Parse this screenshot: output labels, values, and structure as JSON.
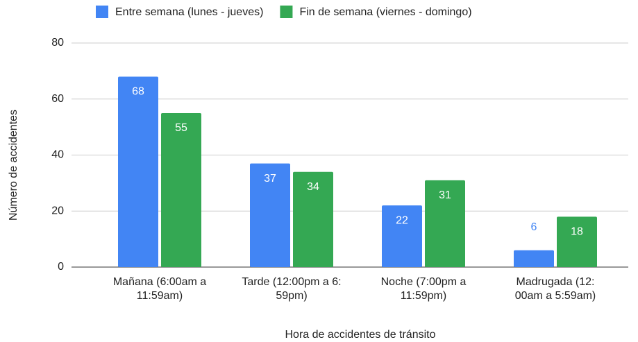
{
  "chart_data": {
    "type": "bar",
    "categories": [
      "Mañana (6:00am a\n11:59am)",
      "Tarde (12:00pm a 6:\n59pm)",
      "Noche (7:00pm a\n11:59pm)",
      "Madrugada (12:\n00am a 5:59am)"
    ],
    "series": [
      {
        "name": "Entre semana (lunes - jueves)",
        "color": "#4285f4",
        "values": [
          68,
          37,
          22,
          6
        ]
      },
      {
        "name": "Fin de semana (viernes - domingo)",
        "color": "#34a853",
        "values": [
          55,
          34,
          31,
          18
        ]
      }
    ],
    "xlabel": "Hora de accidentes de tránsito",
    "ylabel": "Número de accidentes",
    "ylim": [
      0,
      80
    ],
    "yticks": [
      0,
      20,
      40,
      60,
      80
    ],
    "grid": true,
    "legend": "top"
  }
}
